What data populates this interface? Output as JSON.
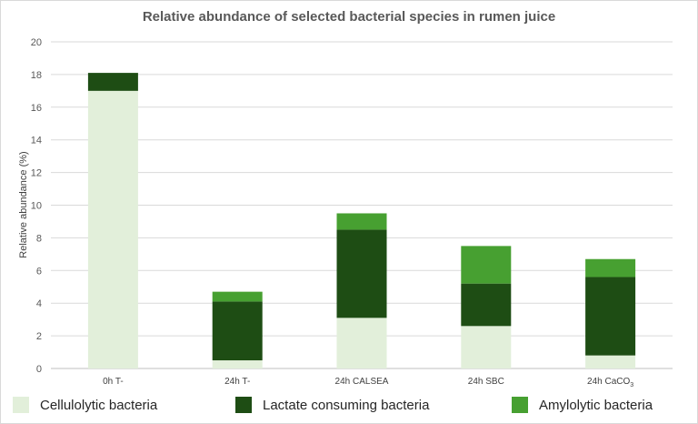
{
  "chart_data": {
    "type": "bar",
    "stacked": true,
    "title": "Relative abundance of selected bacterial species in rumen juice",
    "ylabel": "Relative abundance (%)",
    "xlabel": "",
    "ylim": [
      0,
      20
    ],
    "yticks": [
      "0",
      "2",
      "4",
      "6",
      "8",
      "10",
      "12",
      "14",
      "16",
      "18",
      "20"
    ],
    "categories": [
      "0h T-",
      "24h T-",
      "24h CALSEA",
      "24h SBC",
      "24h CaCO"
    ],
    "category_subscript": [
      "",
      "",
      "",
      "",
      "3"
    ],
    "series": [
      {
        "name": "Cellulolytic bacteria",
        "color": "#e2efda",
        "values": [
          17.0,
          0.5,
          3.1,
          2.6,
          0.8
        ]
      },
      {
        "name": "Lactate consuming bacteria",
        "color": "#1e4d14",
        "values": [
          1.1,
          3.6,
          5.4,
          2.6,
          4.8
        ]
      },
      {
        "name": "Amylolytic bacteria",
        "color": "#47a031",
        "values": [
          0.0,
          0.6,
          1.0,
          2.3,
          1.1
        ]
      }
    ],
    "grid": true,
    "legend_position": "bottom"
  }
}
